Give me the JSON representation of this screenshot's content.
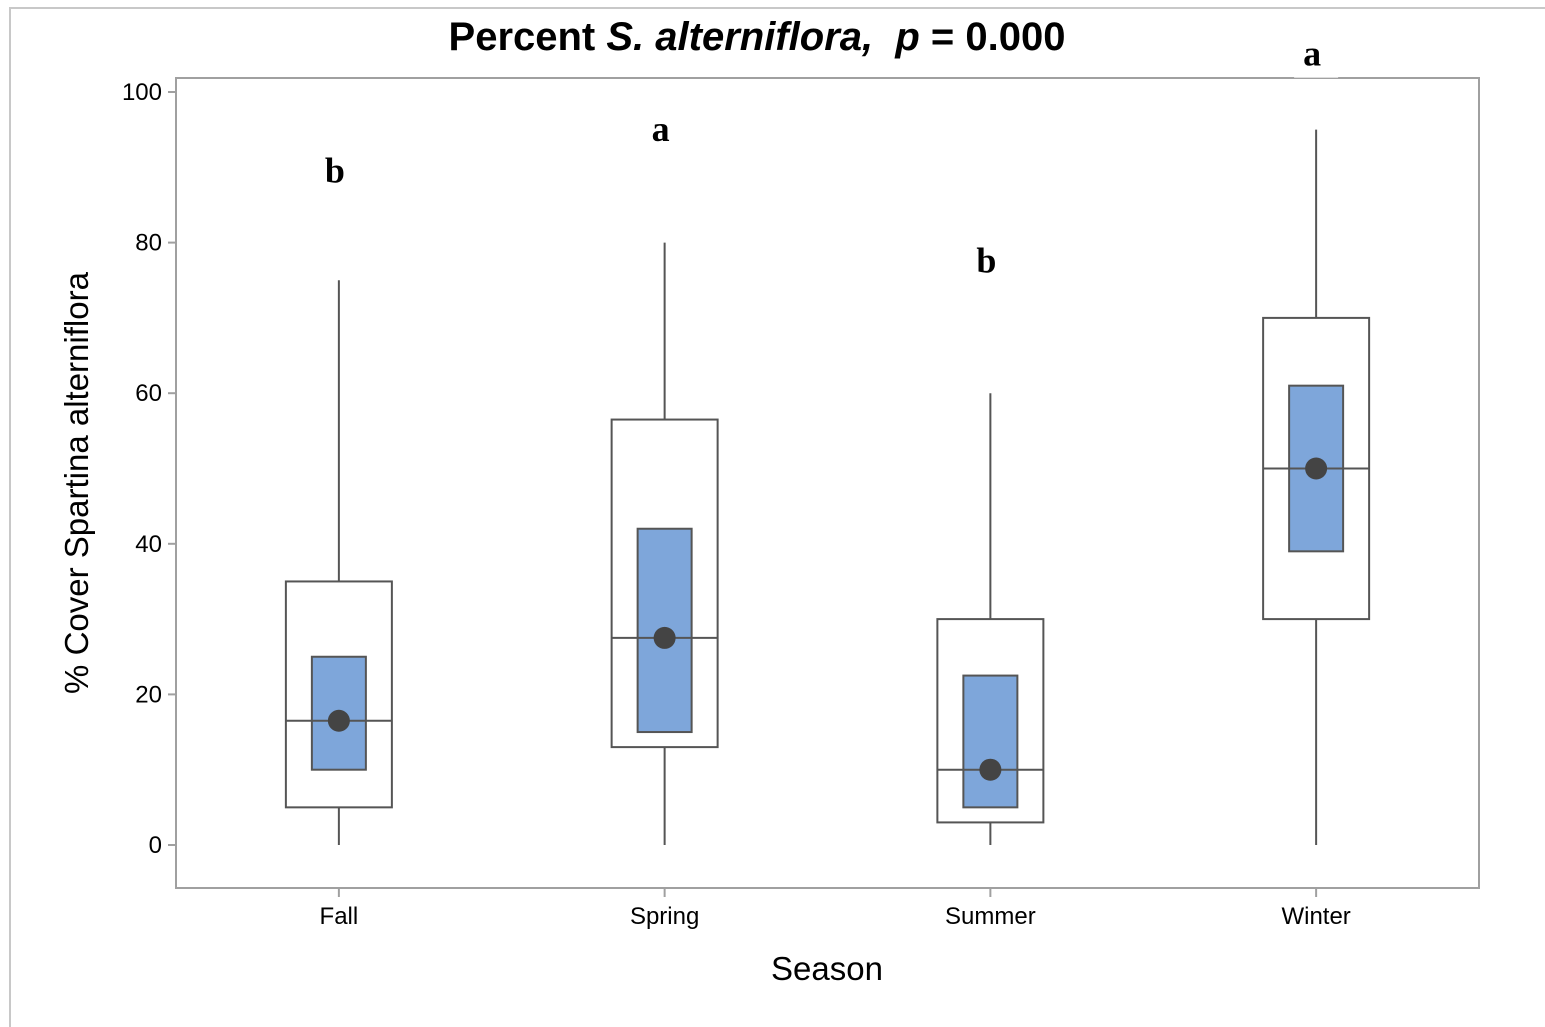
{
  "chart_data": {
    "type": "boxplot",
    "title": {
      "part1": "Percent ",
      "species": "S. alterniflora,",
      "gap": "  ",
      "p_symbol": "p",
      "p_value": " = 0.000"
    },
    "xlabel": "Season",
    "ylabel": "% Cover Spartina alterniflora",
    "ylim": [
      -6,
      102
    ],
    "yticks": [
      0,
      20,
      40,
      60,
      80,
      100
    ],
    "grid": false,
    "colors": {
      "ci_box": "#7ea6da",
      "outline": "#555555",
      "mean_marker": "#444444",
      "frame": "#a0a0a0"
    },
    "categories": [
      "Fall",
      "Spring",
      "Summer",
      "Winter"
    ],
    "boxes": [
      {
        "season": "Fall",
        "min": 0,
        "q1": 5,
        "median": 16.5,
        "q3": 35,
        "max": 75,
        "median_ci": [
          10,
          25
        ],
        "mean": 16.5,
        "letter": "b",
        "letter_y": 88
      },
      {
        "season": "Spring",
        "min": 0,
        "q1": 13,
        "median": 27.5,
        "q3": 56.5,
        "max": 80,
        "median_ci": [
          15,
          42
        ],
        "mean": 27.5,
        "letter": "a",
        "letter_y": 93.5
      },
      {
        "season": "Summer",
        "min": 0,
        "q1": 3,
        "median": 10,
        "q3": 30,
        "max": 60,
        "median_ci": [
          5,
          22.5
        ],
        "mean": 10,
        "letter": "b",
        "letter_y": 76
      },
      {
        "season": "Winter",
        "min": 0,
        "q1": 30,
        "median": 50,
        "q3": 70,
        "max": 95,
        "median_ci": [
          39,
          61
        ],
        "mean": 50,
        "letter": "a",
        "letter_y": 103.5
      }
    ]
  }
}
